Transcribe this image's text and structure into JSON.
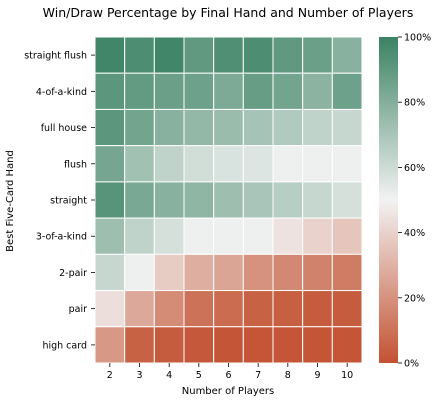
{
  "chart_data": {
    "type": "heatmap",
    "title": "Win/Draw Percentage by Final Hand and Number of Players",
    "xlabel": "Number of Players",
    "ylabel": "Best Five-Card Hand",
    "x": [
      "2",
      "3",
      "4",
      "5",
      "6",
      "7",
      "8",
      "9",
      "10"
    ],
    "y": [
      "straight flush",
      "4-of-a-kind",
      "full house",
      "flush",
      "straight",
      "3-of-a-kind",
      "2-pair",
      "pair",
      "high card"
    ],
    "unit": "%",
    "values": [
      [
        98,
        95,
        98,
        90,
        94,
        95,
        90,
        87,
        79
      ],
      [
        91,
        89,
        87,
        86,
        82,
        88,
        85,
        78,
        86
      ],
      [
        91,
        85,
        79,
        76,
        74,
        71,
        68,
        64,
        62
      ],
      [
        84,
        72,
        64,
        59,
        57,
        56,
        51,
        51,
        51
      ],
      [
        92,
        83,
        79,
        77,
        73,
        70,
        66,
        62,
        58
      ],
      [
        73,
        64,
        58,
        51,
        51,
        51,
        45,
        40,
        36
      ],
      [
        62,
        51,
        38,
        29,
        26,
        20,
        17,
        15,
        13
      ],
      [
        44,
        27,
        18,
        10,
        8,
        5,
        4,
        3,
        3
      ],
      [
        22,
        5,
        3,
        2,
        1,
        1,
        1,
        1,
        1
      ]
    ],
    "colorbar": {
      "min": 0,
      "max": 100,
      "ticks": [
        "0%",
        "20%",
        "40%",
        "60%",
        "80%",
        "100%"
      ],
      "low_color": "#c35232",
      "mid_color": "#f2f2f2",
      "high_color": "#3b8263"
    },
    "grid": false
  }
}
